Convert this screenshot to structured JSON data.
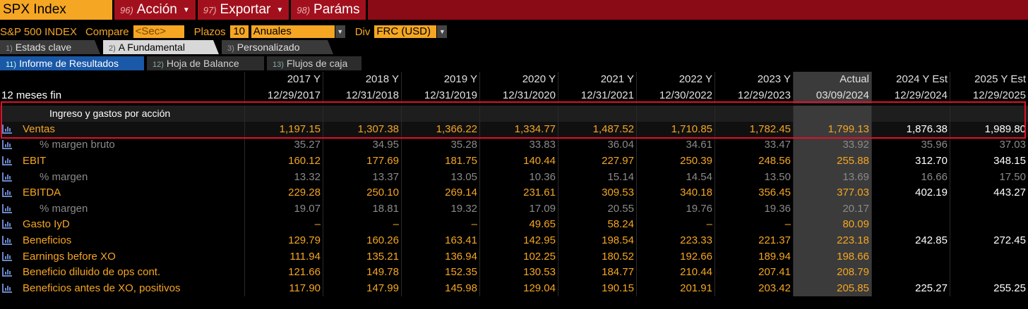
{
  "topbar": {
    "ticker": "SPX Index",
    "menus": [
      {
        "num": "96)",
        "label": "Acción",
        "has_caret": true
      },
      {
        "num": "97)",
        "label": "Exportar",
        "has_caret": true
      },
      {
        "num": "98)",
        "label": "Paráms",
        "has_caret": false
      }
    ]
  },
  "params": {
    "index_name": "S&P 500 INDEX",
    "compare_label": "Compare",
    "compare_value": "<Sec>",
    "plazos_label": "Plazos",
    "plazos_count": "10",
    "plazos_period": "Anuales",
    "div_label": "Div",
    "div_value": "FRC (USD)"
  },
  "tabs_primary": [
    {
      "num": "1)",
      "label": "Estads clave"
    },
    {
      "num": "2)",
      "label": "A Fundamental"
    },
    {
      "num": "3)",
      "label": "Personalizado"
    }
  ],
  "tabs_secondary": [
    {
      "num": "11)",
      "label": "Informe de Resultados"
    },
    {
      "num": "12)",
      "label": "Hoja de Balance"
    },
    {
      "num": "13)",
      "label": "Flujos de caja"
    }
  ],
  "table": {
    "period_label": "12 meses fin",
    "columns": [
      {
        "year": "2017 Y",
        "date": "12/29/2017"
      },
      {
        "year": "2018 Y",
        "date": "12/31/2018"
      },
      {
        "year": "2019 Y",
        "date": "12/31/2019"
      },
      {
        "year": "2020 Y",
        "date": "12/31/2020"
      },
      {
        "year": "2021 Y",
        "date": "12/31/2021"
      },
      {
        "year": "2022 Y",
        "date": "12/30/2022"
      },
      {
        "year": "2023 Y",
        "date": "12/29/2023"
      },
      {
        "year": "Actual",
        "date": "03/09/2024"
      },
      {
        "year": "2024 Y Est",
        "date": "12/29/2024"
      },
      {
        "year": "2025 Y Est",
        "date": "12/29/2025"
      }
    ],
    "section_title": "Ingreso y gastos por acción",
    "rows": [
      {
        "label": "Ventas",
        "style": "main",
        "values": [
          "1,197.15",
          "1,307.38",
          "1,366.22",
          "1,334.77",
          "1,487.52",
          "1,710.85",
          "1,782.45",
          "1,799.13",
          "1,876.38",
          "1,989.80"
        ]
      },
      {
        "label": "% margen bruto",
        "style": "sub",
        "values": [
          "35.27",
          "34.95",
          "35.28",
          "33.83",
          "36.04",
          "34.61",
          "33.47",
          "33.92",
          "35.96",
          "37.03"
        ]
      },
      {
        "label": "EBIT",
        "style": "main",
        "values": [
          "160.12",
          "177.69",
          "181.75",
          "140.44",
          "227.97",
          "250.39",
          "248.56",
          "255.88",
          "312.70",
          "348.15"
        ]
      },
      {
        "label": "% margen",
        "style": "sub",
        "values": [
          "13.32",
          "13.37",
          "13.05",
          "10.36",
          "15.14",
          "14.54",
          "13.50",
          "13.69",
          "16.66",
          "17.50"
        ]
      },
      {
        "label": "EBITDA",
        "style": "main",
        "values": [
          "229.28",
          "250.10",
          "269.14",
          "231.61",
          "309.53",
          "340.18",
          "356.45",
          "377.03",
          "402.19",
          "443.27"
        ]
      },
      {
        "label": "% margen",
        "style": "sub",
        "values": [
          "19.07",
          "18.81",
          "19.32",
          "17.09",
          "20.55",
          "19.76",
          "19.36",
          "20.17",
          "",
          ""
        ]
      },
      {
        "label": "Gasto IyD",
        "style": "main",
        "values": [
          "–",
          "–",
          "–",
          "49.65",
          "58.24",
          "–",
          "–",
          "80.09",
          "",
          ""
        ]
      },
      {
        "label": "Beneficios",
        "style": "main",
        "values": [
          "129.79",
          "160.26",
          "163.41",
          "142.95",
          "198.54",
          "223.33",
          "221.37",
          "223.18",
          "242.85",
          "272.45"
        ]
      },
      {
        "label": "Earnings before XO",
        "style": "main",
        "values": [
          "111.94",
          "135.21",
          "136.94",
          "102.25",
          "180.52",
          "192.66",
          "189.94",
          "198.66",
          "",
          ""
        ]
      },
      {
        "label": "Beneficio diluido de ops cont.",
        "style": "main",
        "values": [
          "121.66",
          "149.78",
          "152.35",
          "130.53",
          "184.77",
          "210.44",
          "207.41",
          "208.79",
          "",
          ""
        ]
      },
      {
        "label": "Beneficios antes de XO, positivos",
        "style": "main",
        "values": [
          "117.90",
          "147.99",
          "145.98",
          "129.04",
          "190.15",
          "201.91",
          "203.42",
          "205.85",
          "225.27",
          "255.25"
        ]
      }
    ]
  },
  "colors": {
    "orange": "#f5a623",
    "header_red": "#8a0a16",
    "tab_blue": "#1a58a8",
    "highlight_red": "#e0102a"
  }
}
